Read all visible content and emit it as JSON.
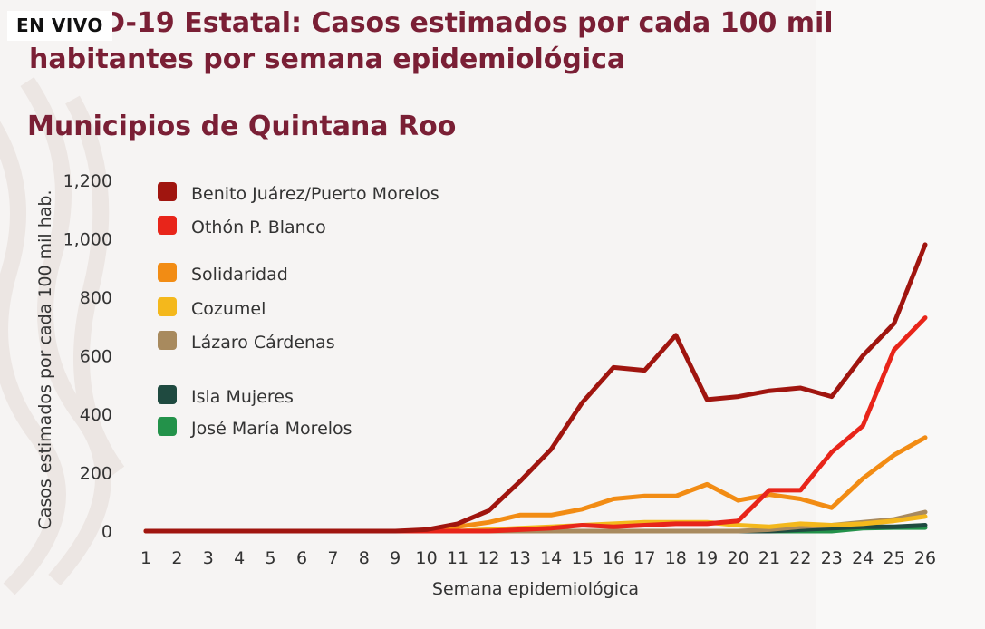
{
  "header": {
    "live_label": "EN VIVO",
    "title": "COVID-19 Estatal: Casos estimados por cada 100 mil habitantes por semana epidemiológica",
    "subtitle": "Municipios de Quintana Roo"
  },
  "chart_data": {
    "type": "line",
    "title": "COVID-19 Estatal: Casos estimados por cada 100 mil habitantes por semana epidemiológica",
    "subtitle": "Municipios de Quintana Roo",
    "xlabel": "Semana epidemiológica",
    "ylabel": "Casos estimados por cada 100 mil hab.",
    "ylim": [
      0,
      1200
    ],
    "yticks": [
      "0",
      "200",
      "400",
      "600",
      "800",
      "1,000",
      "1,200"
    ],
    "x": [
      1,
      2,
      3,
      4,
      5,
      6,
      7,
      8,
      9,
      10,
      11,
      12,
      13,
      14,
      15,
      16,
      17,
      18,
      19,
      20,
      21,
      22,
      23,
      24,
      25,
      26
    ],
    "legend_position": "top-left",
    "grid": false,
    "series": [
      {
        "name": "Benito Juárez/Puerto Morelos",
        "color": "#a0150f",
        "values": [
          0,
          0,
          0,
          0,
          0,
          0,
          0,
          0,
          0,
          5,
          25,
          70,
          170,
          280,
          440,
          560,
          550,
          670,
          450,
          460,
          480,
          490,
          460,
          600,
          710,
          980
        ]
      },
      {
        "name": "Othón P. Blanco",
        "color": "#e8251a",
        "values": [
          0,
          0,
          0,
          0,
          0,
          0,
          0,
          0,
          0,
          0,
          0,
          0,
          5,
          10,
          20,
          15,
          20,
          25,
          25,
          35,
          140,
          140,
          270,
          360,
          620,
          730
        ]
      },
      {
        "name": "Solidaridad",
        "color": "#f28c14",
        "values": [
          0,
          0,
          0,
          0,
          0,
          0,
          0,
          0,
          0,
          0,
          15,
          30,
          55,
          55,
          75,
          110,
          120,
          120,
          160,
          105,
          125,
          110,
          80,
          180,
          260,
          320
        ]
      },
      {
        "name": "Cozumel",
        "color": "#f4b81c",
        "values": [
          0,
          0,
          0,
          0,
          0,
          0,
          0,
          0,
          0,
          0,
          0,
          5,
          10,
          15,
          20,
          25,
          30,
          30,
          30,
          20,
          15,
          25,
          20,
          25,
          35,
          50
        ]
      },
      {
        "name": "Lázaro Cárdenas",
        "color": "#a88a5e",
        "values": [
          0,
          0,
          0,
          0,
          0,
          0,
          0,
          0,
          0,
          0,
          0,
          0,
          0,
          0,
          0,
          0,
          0,
          0,
          0,
          0,
          5,
          15,
          20,
          30,
          40,
          65
        ]
      },
      {
        "name": "Isla Mujeres",
        "color": "#1f4a40",
        "values": [
          0,
          0,
          0,
          0,
          0,
          0,
          0,
          0,
          0,
          0,
          0,
          0,
          0,
          0,
          0,
          0,
          0,
          0,
          0,
          0,
          0,
          5,
          10,
          15,
          15,
          20
        ]
      },
      {
        "name": "José María Morelos",
        "color": "#23924a",
        "values": [
          0,
          0,
          0,
          0,
          0,
          0,
          0,
          0,
          0,
          0,
          0,
          0,
          0,
          0,
          0,
          0,
          0,
          0,
          0,
          0,
          0,
          0,
          0,
          10,
          12,
          12
        ]
      }
    ]
  }
}
